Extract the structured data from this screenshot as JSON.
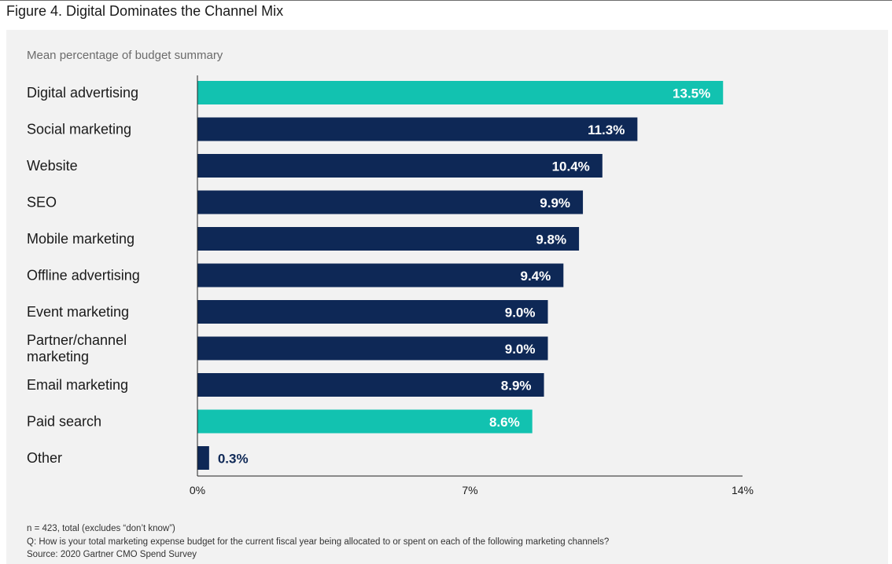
{
  "figure_title": "Figure 4. Digital Dominates the Channel Mix",
  "subtitle": "Mean percentage of budget summary",
  "colors": {
    "highlight": "#12c2b0",
    "primary": "#0e2856",
    "axis": "#222222",
    "panel": "#f2f2f2",
    "label_inside": "#ffffff",
    "label_outside": "#0e2856"
  },
  "chart_data": {
    "type": "bar",
    "orientation": "horizontal",
    "categories": [
      "Digital advertising",
      "Social marketing",
      "Website",
      "SEO",
      "Mobile marketing",
      "Offline advertising",
      "Event marketing",
      "Partner/channel marketing",
      "Email marketing",
      "Paid search",
      "Other"
    ],
    "category_lines": [
      [
        "Digital advertising"
      ],
      [
        "Social marketing"
      ],
      [
        "Website"
      ],
      [
        "SEO"
      ],
      [
        "Mobile marketing"
      ],
      [
        "Offline advertising"
      ],
      [
        "Event marketing"
      ],
      [
        "Partner/channel",
        "marketing"
      ],
      [
        "Email marketing"
      ],
      [
        "Paid search"
      ],
      [
        "Other"
      ]
    ],
    "values": [
      13.5,
      11.3,
      10.4,
      9.9,
      9.8,
      9.4,
      9.0,
      9.0,
      8.9,
      8.6,
      0.3
    ],
    "value_labels": [
      "13.5%",
      "11.3%",
      "10.4%",
      "9.9%",
      "9.8%",
      "9.4%",
      "9.0%",
      "9.0%",
      "8.9%",
      "8.6%",
      "0.3%"
    ],
    "highlighted": [
      true,
      false,
      false,
      false,
      false,
      false,
      false,
      false,
      false,
      true,
      false
    ],
    "xlim": [
      0,
      14
    ],
    "xticks": [
      0,
      7,
      14
    ],
    "xtick_labels": [
      "0%",
      "7%",
      "14%"
    ],
    "grid": false,
    "legend": "none"
  },
  "notes": {
    "n": "n = 423, total (excludes “don’t know”)",
    "question": "Q: How is your total marketing expense budget for the current fiscal year being allocated to or spent on each of the following marketing channels?",
    "source": "Source: 2020 Gartner CMO Spend Survey"
  }
}
